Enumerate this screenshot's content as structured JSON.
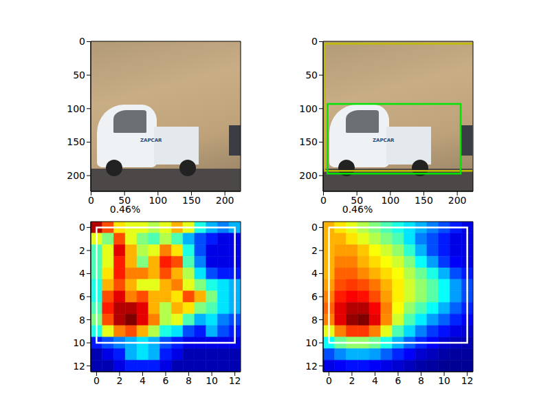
{
  "chart_data": [
    {
      "type": "image",
      "xlim": [
        -0.5,
        223.5
      ],
      "ylim": [
        223.5,
        -0.5
      ],
      "xticks": [
        0,
        50,
        100,
        150,
        200
      ],
      "yticks": [
        0,
        50,
        100,
        150,
        200
      ],
      "image_text": "ZAPCAR"
    },
    {
      "type": "image",
      "xlim": [
        -0.5,
        223.5
      ],
      "ylim": [
        223.5,
        -0.5
      ],
      "xticks": [
        0,
        50,
        100,
        150,
        200
      ],
      "yticks": [
        0,
        50,
        100,
        150,
        200
      ],
      "image_text": "ZAPCAR",
      "boxes": [
        {
          "color": "#bfbf00",
          "x": [
            2,
            224
          ],
          "y": [
            3,
            193
          ]
        },
        {
          "color": "#00e600",
          "x": [
            6,
            205
          ],
          "y": [
            93,
            197
          ]
        }
      ]
    },
    {
      "type": "heatmap",
      "title": "0.46%",
      "xlim": [
        -0.5,
        12.5
      ],
      "ylim": [
        12.5,
        -0.5
      ],
      "xticks": [
        0,
        2,
        4,
        6,
        8,
        10,
        12
      ],
      "yticks": [
        0,
        2,
        4,
        6,
        8,
        10,
        12
      ],
      "clim": [
        0,
        1
      ],
      "cells": [
        [
          0.95,
          0.8,
          0.65,
          0.6,
          0.6,
          0.55,
          0.6,
          0.7,
          0.6,
          0.4,
          0.3,
          0.25,
          0.3
        ],
        [
          0.6,
          0.5,
          0.8,
          0.6,
          0.5,
          0.45,
          0.55,
          0.45,
          0.3,
          0.2,
          0.15,
          0.1,
          0.1
        ],
        [
          0.45,
          0.6,
          0.9,
          0.7,
          0.55,
          0.6,
          0.75,
          0.65,
          0.4,
          0.2,
          0.1,
          0.1,
          0.1
        ],
        [
          0.45,
          0.6,
          0.85,
          0.7,
          0.5,
          0.7,
          0.85,
          0.8,
          0.45,
          0.25,
          0.1,
          0.1,
          0.1
        ],
        [
          0.45,
          0.65,
          0.85,
          0.75,
          0.75,
          0.7,
          0.8,
          0.7,
          0.55,
          0.35,
          0.2,
          0.15,
          0.15
        ],
        [
          0.4,
          0.7,
          0.8,
          0.7,
          0.6,
          0.6,
          0.7,
          0.75,
          0.6,
          0.5,
          0.4,
          0.35,
          0.3
        ],
        [
          0.4,
          0.8,
          0.9,
          0.75,
          0.8,
          0.7,
          0.7,
          0.65,
          0.8,
          0.7,
          0.5,
          0.35,
          0.3
        ],
        [
          0.45,
          0.85,
          0.95,
          0.95,
          0.9,
          0.7,
          0.55,
          0.7,
          0.65,
          0.5,
          0.45,
          0.35,
          0.3
        ],
        [
          0.5,
          0.8,
          0.95,
          1.0,
          0.9,
          0.75,
          0.55,
          0.6,
          0.45,
          0.3,
          0.35,
          0.25,
          0.2
        ],
        [
          0.4,
          0.6,
          0.75,
          0.8,
          0.7,
          0.55,
          0.4,
          0.35,
          0.2,
          0.15,
          0.3,
          0.2,
          0.15
        ],
        [
          0.15,
          0.2,
          0.25,
          0.3,
          0.35,
          0.3,
          0.2,
          0.15,
          0.1,
          0.1,
          0.1,
          0.1,
          0.1
        ],
        [
          0.05,
          0.1,
          0.15,
          0.3,
          0.35,
          0.3,
          0.15,
          0.1,
          0.05,
          0.05,
          0.05,
          0.05,
          0.05
        ],
        [
          0.05,
          0.05,
          0.1,
          0.15,
          0.15,
          0.15,
          0.1,
          0.05,
          0.05,
          0.05,
          0.05,
          0.05,
          0.05
        ]
      ],
      "boxes": [
        {
          "color": "#ffffff",
          "x": [
            0,
            12
          ],
          "y": [
            0,
            10
          ]
        }
      ]
    },
    {
      "type": "heatmap",
      "title": "0.46%",
      "xlim": [
        -0.5,
        12.5
      ],
      "ylim": [
        12.5,
        -0.5
      ],
      "xticks": [
        0,
        2,
        4,
        6,
        8,
        10,
        12
      ],
      "yticks": [
        0,
        2,
        4,
        6,
        8,
        10,
        12
      ],
      "clim": [
        0,
        1
      ],
      "cells": [
        [
          0.7,
          0.65,
          0.6,
          0.55,
          0.5,
          0.45,
          0.4,
          0.35,
          0.3,
          0.25,
          0.2,
          0.15,
          0.1
        ],
        [
          0.7,
          0.7,
          0.65,
          0.6,
          0.55,
          0.5,
          0.45,
          0.35,
          0.25,
          0.2,
          0.15,
          0.1,
          0.1
        ],
        [
          0.7,
          0.72,
          0.72,
          0.68,
          0.62,
          0.58,
          0.52,
          0.42,
          0.3,
          0.2,
          0.15,
          0.1,
          0.1
        ],
        [
          0.7,
          0.75,
          0.75,
          0.7,
          0.66,
          0.62,
          0.58,
          0.5,
          0.38,
          0.28,
          0.18,
          0.12,
          0.1
        ],
        [
          0.7,
          0.78,
          0.78,
          0.74,
          0.7,
          0.66,
          0.62,
          0.55,
          0.48,
          0.4,
          0.3,
          0.2,
          0.15
        ],
        [
          0.72,
          0.8,
          0.82,
          0.8,
          0.76,
          0.7,
          0.64,
          0.58,
          0.52,
          0.46,
          0.38,
          0.28,
          0.2
        ],
        [
          0.75,
          0.85,
          0.88,
          0.86,
          0.8,
          0.72,
          0.64,
          0.58,
          0.52,
          0.46,
          0.38,
          0.28,
          0.2
        ],
        [
          0.78,
          0.9,
          0.95,
          0.95,
          0.88,
          0.75,
          0.62,
          0.52,
          0.45,
          0.38,
          0.3,
          0.22,
          0.16
        ],
        [
          0.75,
          0.9,
          0.98,
          1.0,
          0.9,
          0.74,
          0.58,
          0.45,
          0.36,
          0.28,
          0.22,
          0.16,
          0.12
        ],
        [
          0.6,
          0.75,
          0.82,
          0.82,
          0.75,
          0.6,
          0.45,
          0.34,
          0.25,
          0.18,
          0.14,
          0.1,
          0.08
        ],
        [
          0.38,
          0.48,
          0.52,
          0.52,
          0.48,
          0.4,
          0.3,
          0.22,
          0.16,
          0.12,
          0.08,
          0.06,
          0.05
        ],
        [
          0.2,
          0.26,
          0.3,
          0.3,
          0.28,
          0.22,
          0.16,
          0.12,
          0.08,
          0.06,
          0.04,
          0.03,
          0.03
        ],
        [
          0.1,
          0.12,
          0.14,
          0.14,
          0.12,
          0.1,
          0.08,
          0.06,
          0.04,
          0.03,
          0.02,
          0.02,
          0.02
        ]
      ],
      "boxes": [
        {
          "color": "#ffffff",
          "x": [
            0,
            12
          ],
          "y": [
            0,
            10
          ]
        }
      ]
    }
  ]
}
